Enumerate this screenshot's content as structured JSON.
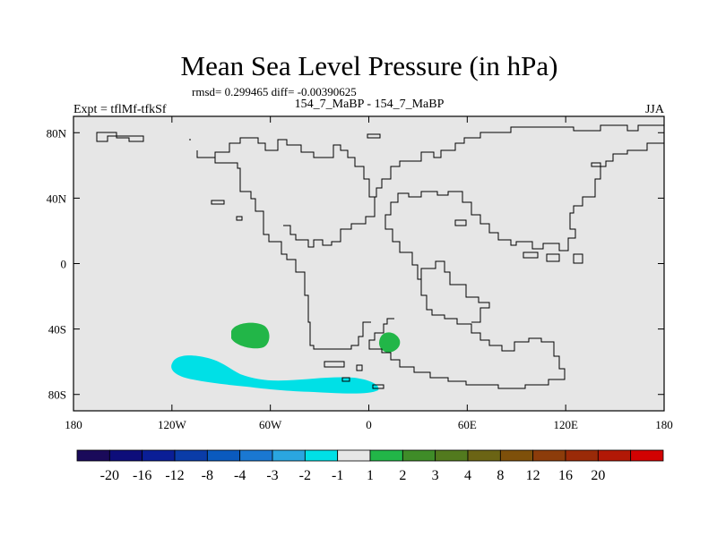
{
  "chart_data": {
    "type": "map-contour",
    "title": "Mean Sea Level Pressure (in hPa)",
    "stats_line": "rmsd= 0.299465 diff= -0.00390625",
    "comparison": "154_7_MaBP - 154_7_MaBP",
    "experiment": "Expt = tflMf-tfkSf",
    "season": "JJA",
    "lon_range": [
      -180,
      180
    ],
    "lat_range": [
      -90,
      90
    ],
    "x_ticks": [
      {
        "value": -180,
        "label": "180"
      },
      {
        "value": -120,
        "label": "120W"
      },
      {
        "value": -60,
        "label": "60W"
      },
      {
        "value": 0,
        "label": "0"
      },
      {
        "value": 60,
        "label": "60E"
      },
      {
        "value": 120,
        "label": "120E"
      },
      {
        "value": 180,
        "label": "180"
      }
    ],
    "y_ticks": [
      {
        "value": 80,
        "label": "80N"
      },
      {
        "value": 40,
        "label": "40N"
      },
      {
        "value": 0,
        "label": "0"
      },
      {
        "value": -40,
        "label": "40S"
      },
      {
        "value": -80,
        "label": "80S"
      }
    ],
    "colorbar": {
      "colors": [
        "#1a0a5a",
        "#0d0d7a",
        "#0a1e96",
        "#0a3ca8",
        "#0a5abe",
        "#1a78d2",
        "#2aa6e0",
        "#00e0e6",
        "#e6e6e6",
        "#22b648",
        "#3f8c28",
        "#527a1e",
        "#6b6414",
        "#7e500a",
        "#8c3c0a",
        "#9a2a08",
        "#b21806",
        "#d20202"
      ],
      "labels": [
        "-20",
        "-16",
        "-12",
        "-8",
        "-4",
        "-3",
        "-2",
        "-1",
        "1",
        "2",
        "3",
        "4",
        "8",
        "12",
        "16",
        "20"
      ]
    },
    "anomaly_regions": [
      {
        "name": "cyan-band-southern-ocean",
        "level": "-2 to -1",
        "color": "#00e0e6"
      },
      {
        "name": "green-patch-south-pacific",
        "level": "1 to 2",
        "color": "#22b648"
      },
      {
        "name": "green-patch-south-atlantic",
        "level": "1 to 2",
        "color": "#22b648"
      }
    ]
  }
}
